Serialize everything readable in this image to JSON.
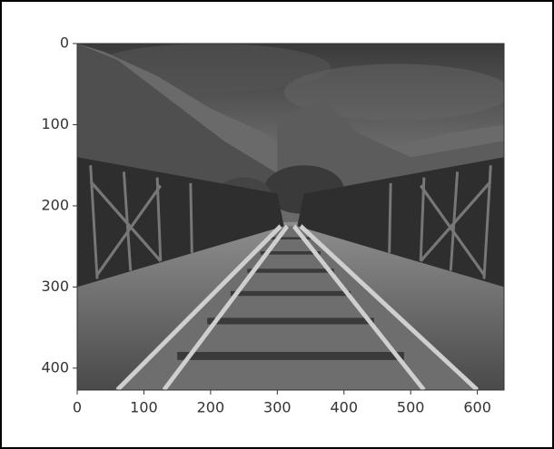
{
  "chart_data": {
    "type": "image",
    "xlim": [
      0,
      640
    ],
    "xticks": [
      0,
      100,
      200,
      300,
      400,
      500,
      600
    ],
    "ylim": [
      427,
      0
    ],
    "yticks": [
      0,
      100,
      200,
      300,
      400
    ]
  }
}
